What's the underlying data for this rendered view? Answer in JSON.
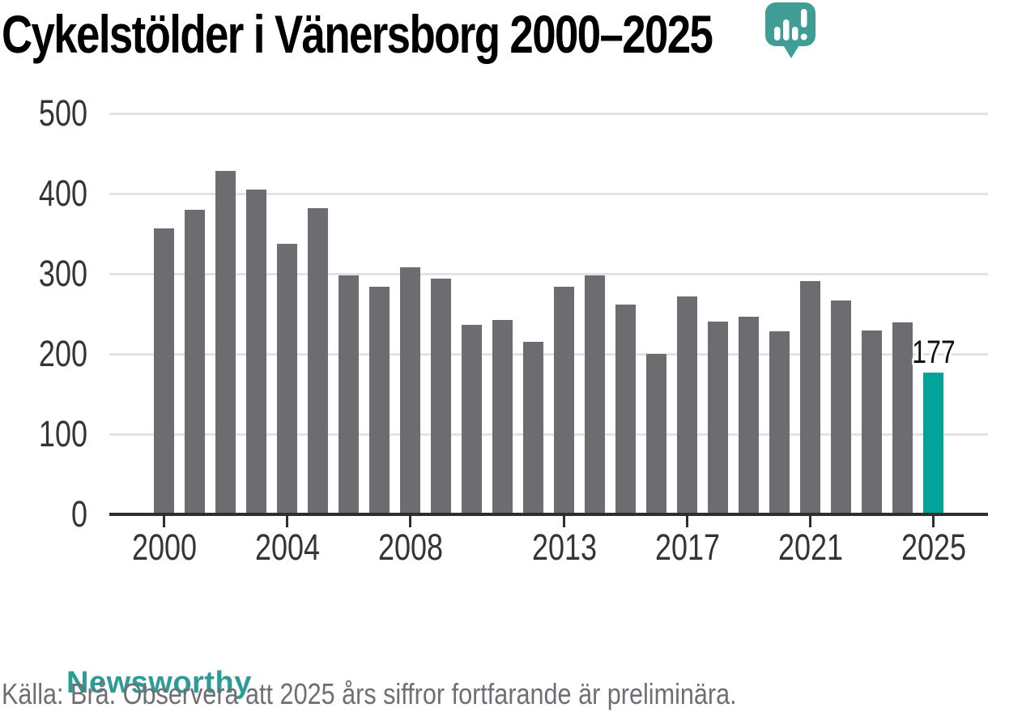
{
  "chart_data": {
    "type": "bar",
    "title": "Cykelstölder i Vänersborg 2000–2025",
    "xlabel": "",
    "ylabel": "",
    "categories": [
      2000,
      2001,
      2002,
      2003,
      2004,
      2005,
      2006,
      2007,
      2008,
      2009,
      2010,
      2011,
      2012,
      2013,
      2014,
      2015,
      2016,
      2017,
      2018,
      2019,
      2020,
      2021,
      2022,
      2023,
      2024,
      2025
    ],
    "values": [
      357,
      380,
      428,
      405,
      337,
      382,
      298,
      284,
      308,
      294,
      236,
      242,
      215,
      284,
      298,
      262,
      200,
      272,
      240,
      246,
      228,
      291,
      267,
      229,
      239,
      177
    ],
    "ylim": [
      0,
      500
    ],
    "yticks": [
      0,
      100,
      200,
      300,
      400,
      500
    ],
    "xticks": [
      2000,
      2004,
      2008,
      2013,
      2017,
      2021,
      2025
    ],
    "grid": true,
    "legend": "none",
    "bar_color": "#6d6c71",
    "highlight": {
      "category": 2025,
      "value": 177,
      "label": "177",
      "color": "#00a49a"
    }
  },
  "footer": {
    "source": "Källa: Brå. Observera att 2025 års siffror fortfarande är preliminära.",
    "brand": "Newsworthy"
  },
  "colors": {
    "title_text": "#000000",
    "axis_label": "#333338",
    "gridline": "#e3e3e3",
    "axis_line": "#2e2e2e",
    "source_text": "#6e6e75",
    "brand_teal": "#2e9c96",
    "brand_icon_teal": "#3f9d96"
  }
}
